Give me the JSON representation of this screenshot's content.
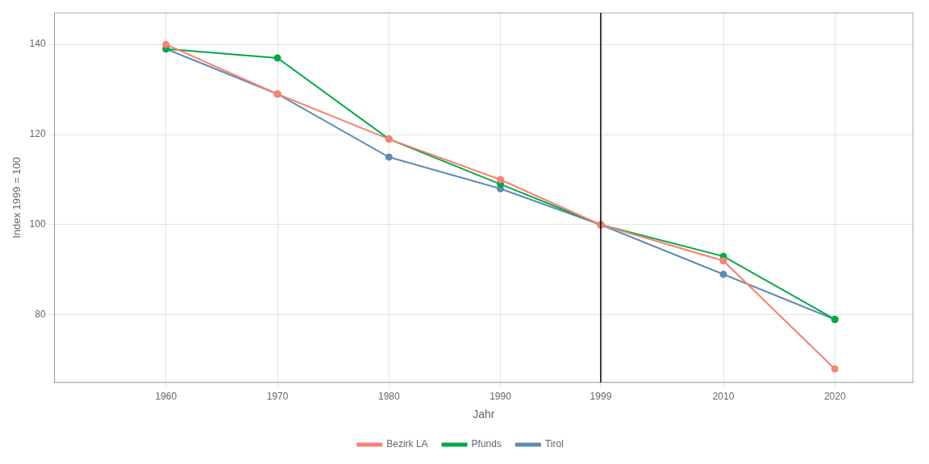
{
  "chart_data": {
    "type": "line",
    "x": [
      1960,
      1970,
      1980,
      1990,
      1999,
      2010,
      2020
    ],
    "series": [
      {
        "name": "Bezirk LA",
        "color": "#FA8072",
        "values": [
          140,
          129,
          119,
          110,
          100,
          92,
          68
        ]
      },
      {
        "name": "Pfunds",
        "color": "#00AA44",
        "values": [
          139,
          137,
          119,
          109,
          100,
          93,
          79
        ]
      },
      {
        "name": "Tirol",
        "color": "#5B8DB8",
        "values": [
          139,
          129,
          115,
          108,
          100,
          89,
          79
        ]
      }
    ],
    "x_label": "Jahr",
    "y_label": "Index 1999 = 100",
    "xlim": [
      1950,
      2027
    ],
    "xticks": [
      1960,
      1970,
      1980,
      1990,
      1999,
      2010,
      2020
    ],
    "ylim": [
      65,
      147
    ],
    "yticks": [
      80,
      100,
      120,
      140
    ],
    "vline_x": 1999,
    "grid": true,
    "legend": "bottom",
    "marker": "circle"
  }
}
